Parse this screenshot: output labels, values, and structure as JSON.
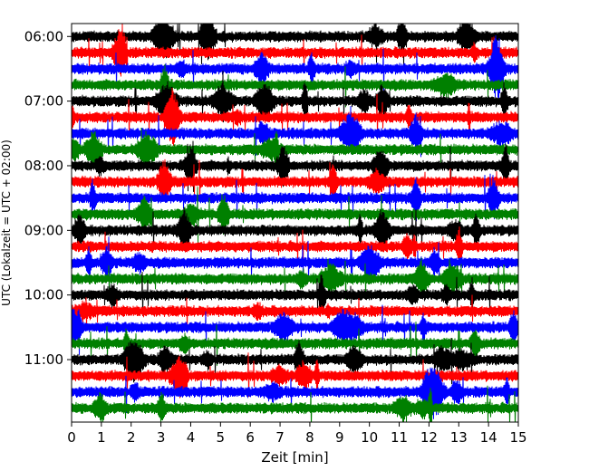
{
  "chart_data": {
    "type": "line",
    "title": "",
    "xlabel": "Zeit  [min]",
    "ylabel": "UTC (Lokalzeit = UTC + 02:00)",
    "xlim": [
      0,
      15
    ],
    "ylim_utc": [
      "05:48",
      "11:58"
    ],
    "x_ticks": [
      "0",
      "1",
      "2",
      "3",
      "4",
      "5",
      "6",
      "7",
      "8",
      "9",
      "10",
      "11",
      "12",
      "13",
      "14",
      "15"
    ],
    "y_ticks": [
      {
        "label": "06:00",
        "time": "06:00"
      },
      {
        "label": "07:00",
        "time": "07:00"
      },
      {
        "label": "08:00",
        "time": "08:00"
      },
      {
        "label": "09:00",
        "time": "09:00"
      },
      {
        "label": "10:00",
        "time": "10:00"
      },
      {
        "label": "11:00",
        "time": "11:00"
      }
    ],
    "trace_interval_min": 15,
    "trace_colors": [
      "#000000",
      "#ff0000",
      "#0000ff",
      "#008000"
    ],
    "traces": [
      {
        "start": "06:00"
      },
      {
        "start": "06:15"
      },
      {
        "start": "06:30"
      },
      {
        "start": "06:45"
      },
      {
        "start": "07:00"
      },
      {
        "start": "07:15"
      },
      {
        "start": "07:30"
      },
      {
        "start": "07:45"
      },
      {
        "start": "08:00"
      },
      {
        "start": "08:15"
      },
      {
        "start": "08:30"
      },
      {
        "start": "08:45"
      },
      {
        "start": "09:00"
      },
      {
        "start": "09:15"
      },
      {
        "start": "09:30"
      },
      {
        "start": "09:45"
      },
      {
        "start": "10:00"
      },
      {
        "start": "10:15"
      },
      {
        "start": "10:30"
      },
      {
        "start": "10:45"
      },
      {
        "start": "11:00"
      },
      {
        "start": "11:15"
      },
      {
        "start": "11:30"
      },
      {
        "start": "11:45"
      }
    ],
    "grid": false,
    "legend": "none"
  }
}
